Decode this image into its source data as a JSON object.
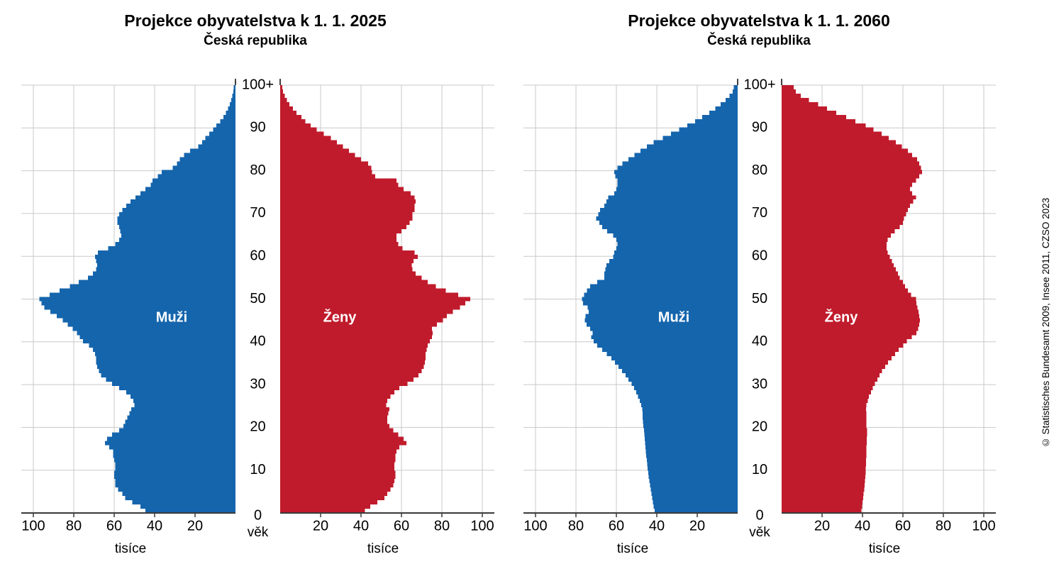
{
  "page": {
    "source_note": "© Statistisches Bundesamt 2009, Insee 2011, CZSO 2023"
  },
  "labels": {
    "x_axis_unit": "tisíce",
    "age_axis": "věk",
    "age_top": "100+"
  },
  "colors": {
    "male": "#1565AD",
    "female": "#C01B2C",
    "grid": "#C9C9C9",
    "axis": "#3A3A3A",
    "series_label": "#FFFFFF",
    "text": "#000000"
  },
  "axes": {
    "x_tick_values": [
      20,
      40,
      60,
      80,
      100
    ],
    "age_tick_values": [
      0,
      10,
      20,
      30,
      40,
      50,
      60,
      70,
      80,
      90,
      100
    ],
    "x_unit": "thousands of persons",
    "y_unit": "single year of age, 0 to 100+"
  },
  "chart_data": [
    {
      "type": "bar",
      "variant": "population_pyramid",
      "title": "Projekce obyvatelstva k 1. 1. 2025",
      "subtitle": "Česká republika",
      "xlabel": "tisíce",
      "ylabel": "věk",
      "xlim_thousands": [
        0,
        106
      ],
      "ages": "0-100+",
      "series": [
        {
          "name": "Muži",
          "sex": "male",
          "side": "left",
          "values": [
            44.5,
            47,
            51,
            54.5,
            56,
            58,
            59.5,
            59.5,
            60,
            60,
            59.5,
            59.5,
            60,
            60.5,
            60.5,
            62.5,
            64.5,
            63.5,
            61,
            57.5,
            55.5,
            54.5,
            53.5,
            52.5,
            51.5,
            50,
            50.5,
            52,
            54,
            57.5,
            61,
            64,
            66.5,
            67.5,
            68.5,
            69,
            69,
            69.5,
            70.5,
            72.5,
            75.5,
            77,
            78.5,
            80.5,
            83,
            85.5,
            88.5,
            91.5,
            94.5,
            96,
            97,
            92,
            87,
            82,
            77.5,
            73,
            70.5,
            69,
            68.5,
            69,
            69.5,
            68,
            63,
            59.5,
            57.5,
            56.5,
            57,
            57.5,
            58.5,
            58.5,
            57.5,
            56,
            54,
            52,
            49.5,
            47,
            44.5,
            42,
            41,
            38.5,
            36.5,
            31,
            29,
            27.5,
            25.5,
            22.5,
            18.5,
            16.5,
            15,
            13,
            11,
            9.5,
            7.5,
            6,
            4.8,
            3.6,
            2.8,
            2.1,
            1.5,
            1,
            0.8
          ]
        },
        {
          "name": "Ženy",
          "sex": "female",
          "side": "right",
          "values": [
            42,
            44.5,
            48,
            51.5,
            53,
            54.5,
            56,
            56.5,
            57,
            57,
            56.5,
            56.5,
            57,
            57,
            57.5,
            59,
            62.5,
            61,
            58.5,
            56,
            54,
            53,
            53,
            53.5,
            54,
            52.5,
            53,
            54.5,
            56.5,
            59,
            63,
            66,
            68.5,
            70,
            71,
            71.5,
            72,
            72,
            72.5,
            73,
            74,
            75,
            75.5,
            75,
            77.5,
            80.5,
            82.5,
            85.5,
            89,
            91.5,
            94,
            88,
            82,
            77,
            73,
            70,
            67,
            65.5,
            65,
            66,
            68,
            66.5,
            60.5,
            58.5,
            57.5,
            57.5,
            60,
            62.5,
            64,
            65.5,
            65.5,
            66.5,
            66.5,
            67,
            66.5,
            64.5,
            61,
            58.5,
            57.5,
            47,
            45.5,
            45,
            43.5,
            40,
            37,
            34,
            31,
            28,
            25,
            21.5,
            18,
            15,
            12.5,
            10.5,
            8,
            6.3,
            4.5,
            3.3,
            2.2,
            1.4,
            1.1
          ]
        }
      ]
    },
    {
      "type": "bar",
      "variant": "population_pyramid",
      "title": "Projekce obyvatelstva k 1. 1. 2060",
      "subtitle": "Česká republika",
      "xlabel": "tisíce",
      "ylabel": "věk",
      "xlim_thousands": [
        0,
        106
      ],
      "ages": "0-100+",
      "series": [
        {
          "name": "Muži",
          "sex": "male",
          "side": "left",
          "values": [
            41,
            41.5,
            42,
            42.3,
            42.6,
            43,
            43.3,
            43.6,
            44,
            44.2,
            44.5,
            44.7,
            45,
            45.2,
            45.4,
            45.6,
            45.8,
            46,
            46.2,
            46.4,
            46.6,
            46.8,
            47,
            47.1,
            47.2,
            47.8,
            48.4,
            49.3,
            50.2,
            51.3,
            52.5,
            54,
            55.4,
            57.2,
            58.9,
            60.7,
            62.5,
            64.8,
            67.1,
            69.5,
            71.2,
            72.4,
            71.8,
            72.9,
            74.7,
            75.6,
            75.3,
            73.6,
            74.2,
            76.5,
            77,
            76,
            74.5,
            73,
            69.5,
            66,
            66,
            65.5,
            65,
            63.5,
            61.5,
            61,
            60,
            59.5,
            60,
            61.5,
            64.5,
            67,
            68.5,
            70,
            69,
            68,
            66,
            65,
            64,
            61,
            60,
            59.5,
            59.5,
            60.5,
            61,
            59.5,
            57,
            54,
            51,
            48,
            45,
            41.5,
            37,
            33,
            29,
            25,
            21,
            17.5,
            14,
            11,
            8.5,
            6,
            4,
            2.5,
            2
          ]
        },
        {
          "name": "Ženy",
          "sex": "female",
          "side": "right",
          "values": [
            39.5,
            39.8,
            40,
            40.3,
            40.5,
            40.8,
            41,
            41.2,
            41.4,
            41.5,
            41.6,
            41.7,
            41.8,
            41.9,
            42,
            42,
            42.1,
            42.1,
            42.2,
            42.2,
            42,
            42,
            41.9,
            41.9,
            41.8,
            42,
            42.6,
            43.2,
            44.2,
            45,
            46.1,
            47.3,
            48.5,
            49.7,
            51.2,
            52.6,
            54.4,
            56.1,
            57.9,
            60.2,
            62,
            64.3,
            66.7,
            67.5,
            68.1,
            68.4,
            68.1,
            67.8,
            67.2,
            66.7,
            66.5,
            64,
            62.5,
            61,
            60,
            58.5,
            57.5,
            56.5,
            55.5,
            54.5,
            53.5,
            52.5,
            52,
            52,
            52.5,
            54,
            56,
            58.5,
            60,
            60.5,
            61.5,
            62.5,
            63.5,
            65,
            66.5,
            64.5,
            63.5,
            64.5,
            66.5,
            68,
            69.5,
            69,
            68,
            67,
            64.5,
            62.5,
            59.5,
            56.5,
            53,
            49.5,
            45.5,
            41.5,
            36.5,
            32,
            27,
            22.5,
            18,
            13.5,
            9.5,
            7,
            6
          ]
        }
      ]
    }
  ]
}
